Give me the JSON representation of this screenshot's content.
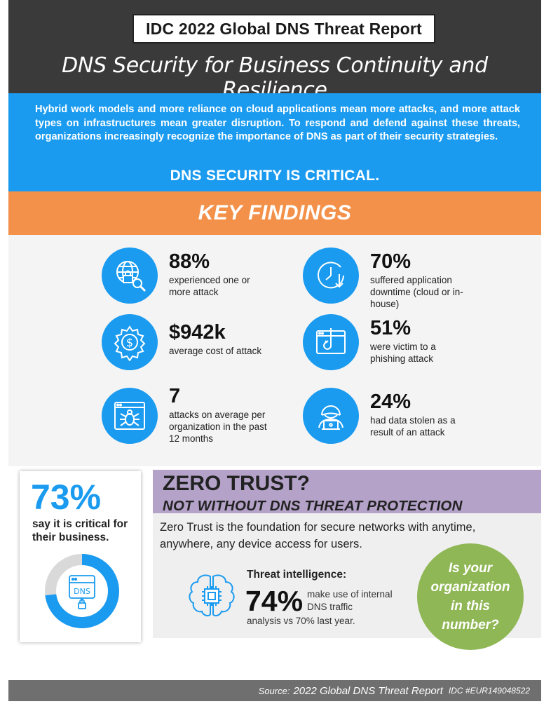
{
  "header": {
    "report_label": "IDC 2022 Global DNS Threat Report",
    "title": "DNS Security for Business Continuity and Resilience"
  },
  "intro": {
    "text": "Hybrid work models and more reliance on cloud applications mean more attacks, and more attack types on infrastructures mean greater disruption. To respond and defend against these threats, organizations increasingly recognize the importance of DNS as part of their security strategies.",
    "headline": "DNS SECURITY IS CRITICAL."
  },
  "key_findings": {
    "title": "KEY FINDINGS",
    "items": [
      {
        "icon": "globe-lock-icon",
        "value": "88%",
        "desc": "experienced one or more attack"
      },
      {
        "icon": "clock-icon",
        "value": "70%",
        "desc": "suffered application downtime (cloud or in-house)"
      },
      {
        "icon": "dollar-gear-icon",
        "value": "$942k",
        "desc": "average cost of attack"
      },
      {
        "icon": "phishing-hook-icon",
        "value": "51%",
        "desc": "were victim to a phishing attack"
      },
      {
        "icon": "bug-window-icon",
        "value": "7",
        "desc": "attacks on average per organization in the past 12 months"
      },
      {
        "icon": "hacker-laptop-icon",
        "value": "24%",
        "desc": "had data stolen as a result of an attack"
      }
    ]
  },
  "critical_stat": {
    "value": "73%",
    "desc": "say it is critical for their business.",
    "donut_fraction": 0.73,
    "icon_label": "DNS"
  },
  "zero_trust": {
    "title": "ZERO TRUST?",
    "subtitle": "NOT WITHOUT DNS THREAT PROTECTION",
    "text": "Zero Trust is the foundation for secure networks with anytime, anywhere, any device access for users."
  },
  "threat_intel": {
    "title": "Threat intelligence:",
    "value": "74%",
    "desc1": "make use of internal DNS traffic",
    "desc2": "analysis vs 70% last year."
  },
  "callout": {
    "text": "Is your organization in this number?"
  },
  "footer": {
    "label": "Source:",
    "source": "2022 Global DNS Threat Report",
    "idc": "IDC #EUR149048522"
  },
  "colors": {
    "blue": "#1a9bf0",
    "orange": "#f3914a",
    "purple": "#b4a2c9",
    "green": "#90b755",
    "dark": "#3a3a3a"
  }
}
